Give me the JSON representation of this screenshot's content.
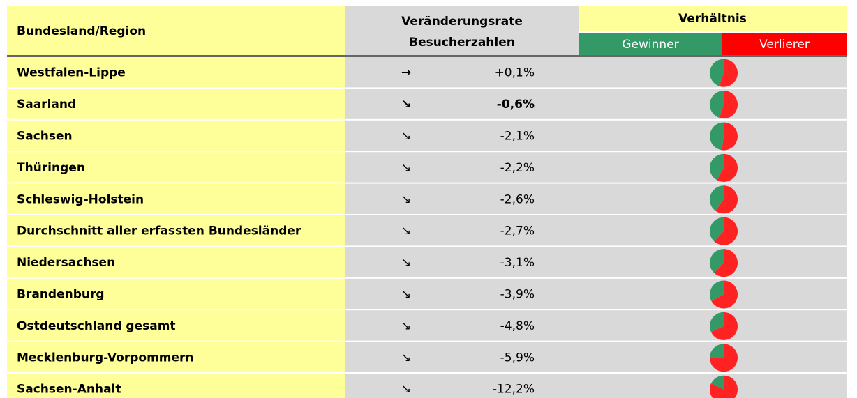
{
  "header": {
    "region": "Bundesland/Region",
    "change": [
      "Veränderungsrate",
      "Besucherzahlen"
    ],
    "ratio": "Verhältnis",
    "winners": "Gewinner",
    "losers": "Verlierer"
  },
  "rows": [
    {
      "region": "Westfalen-Lippe",
      "trend": "→",
      "change": "+0,1%",
      "winner_share": 45
    },
    {
      "region": "Saarland",
      "trend": "↘",
      "change": "-0,6%",
      "winner_share": 45,
      "bold": true
    },
    {
      "region": "Sachsen",
      "trend": "↘",
      "change": "-2,1%",
      "winner_share": 48
    },
    {
      "region": "Thüringen",
      "trend": "↘",
      "change": "-2,2%",
      "winner_share": 42
    },
    {
      "region": "Schleswig-Holstein",
      "trend": "↘",
      "change": "-2,6%",
      "winner_share": 40
    },
    {
      "region": "Durchschnitt aller erfassten Bundesländer",
      "trend": "↘",
      "change": "-2,7%",
      "winner_share": 38
    },
    {
      "region": "Niedersachsen",
      "trend": "↘",
      "change": "-3,1%",
      "winner_share": 38
    },
    {
      "region": "Brandenburg",
      "trend": "↘",
      "change": "-3,9%",
      "winner_share": 33
    },
    {
      "region": "Ostdeutschland gesamt",
      "trend": "↘",
      "change": "-4,8%",
      "winner_share": 32
    },
    {
      "region": "Mecklenburg-Vorpommern",
      "trend": "↘",
      "change": "-5,9%",
      "winner_share": 25
    },
    {
      "region": "Sachsen-Anhalt",
      "trend": "↘",
      "change": "-12,2%",
      "winner_share": 18
    }
  ]
}
